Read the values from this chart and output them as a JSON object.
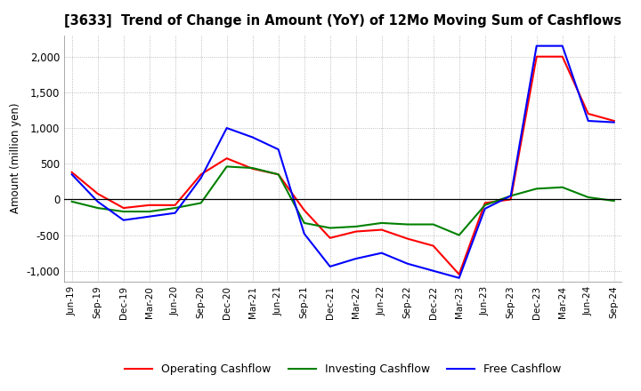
{
  "title": "[3633]  Trend of Change in Amount (YoY) of 12Mo Moving Sum of Cashflows",
  "ylabel": "Amount (million yen)",
  "ylim": [
    -1150,
    2300
  ],
  "yticks": [
    -1000,
    -500,
    0,
    500,
    1000,
    1500,
    2000
  ],
  "legend": [
    "Operating Cashflow",
    "Investing Cashflow",
    "Free Cashflow"
  ],
  "colors": [
    "red",
    "green",
    "blue"
  ],
  "x_labels": [
    "Jun-19",
    "Sep-19",
    "Dec-19",
    "Mar-20",
    "Jun-20",
    "Sep-20",
    "Dec-20",
    "Mar-21",
    "Jun-21",
    "Sep-21",
    "Dec-21",
    "Mar-22",
    "Jun-22",
    "Sep-22",
    "Dec-22",
    "Mar-23",
    "Jun-23",
    "Sep-23",
    "Dec-23",
    "Mar-24",
    "Jun-24",
    "Sep-24"
  ],
  "operating": [
    380,
    80,
    -120,
    -80,
    -80,
    350,
    575,
    430,
    350,
    -150,
    -540,
    -450,
    -425,
    -550,
    -650,
    -1050,
    -50,
    0,
    2000,
    2000,
    1200,
    1100
  ],
  "investing": [
    -30,
    -120,
    -170,
    -170,
    -120,
    -50,
    460,
    440,
    350,
    -330,
    -400,
    -380,
    -330,
    -350,
    -350,
    -500,
    -80,
    50,
    150,
    170,
    30,
    -20
  ],
  "free": [
    350,
    -30,
    -290,
    -240,
    -190,
    300,
    1000,
    870,
    700,
    -480,
    -940,
    -830,
    -750,
    -900,
    -1000,
    -1100,
    -130,
    50,
    2150,
    2150,
    1100,
    1080
  ],
  "background_color": "#ffffff",
  "grid_color": "#aaaaaa"
}
